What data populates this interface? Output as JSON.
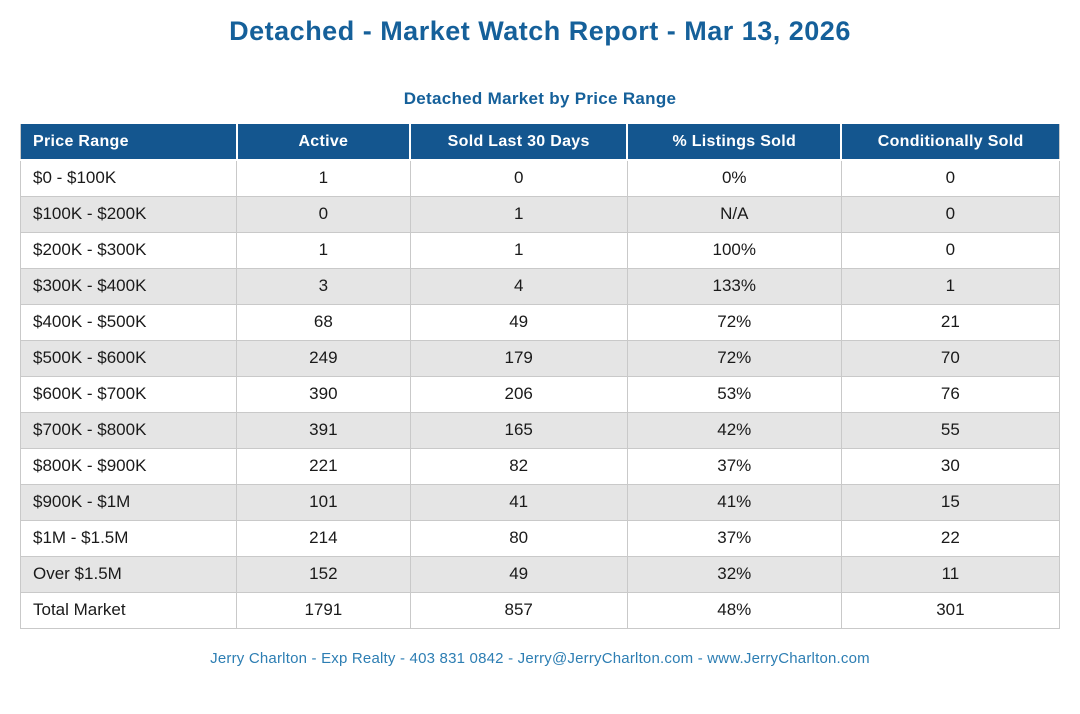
{
  "title": "Detached - Market Watch Report - Mar 13, 2026",
  "table": {
    "title": "Detached Market by Price Range",
    "columns": [
      "Price Range",
      "Active",
      "Sold Last 30 Days",
      "% Listings Sold",
      "Conditionally Sold"
    ],
    "rows": [
      [
        "$0 - $100K",
        "1",
        "0",
        "0%",
        "0"
      ],
      [
        "$100K - $200K",
        "0",
        "1",
        "N/A",
        "0"
      ],
      [
        "$200K - $300K",
        "1",
        "1",
        "100%",
        "0"
      ],
      [
        "$300K - $400K",
        "3",
        "4",
        "133%",
        "1"
      ],
      [
        "$400K - $500K",
        "68",
        "49",
        "72%",
        "21"
      ],
      [
        "$500K - $600K",
        "249",
        "179",
        "72%",
        "70"
      ],
      [
        "$600K - $700K",
        "390",
        "206",
        "53%",
        "76"
      ],
      [
        "$700K - $800K",
        "391",
        "165",
        "42%",
        "55"
      ],
      [
        "$800K - $900K",
        "221",
        "82",
        "37%",
        "30"
      ],
      [
        "$900K - $1M",
        "101",
        "41",
        "41%",
        "15"
      ],
      [
        "$1M - $1.5M",
        "214",
        "80",
        "37%",
        "22"
      ],
      [
        "Over $1.5M",
        "152",
        "49",
        "32%",
        "11"
      ],
      [
        "Total Market",
        "1791",
        "857",
        "48%",
        "301"
      ]
    ]
  },
  "footer": {
    "text": "Jerry Charlton - Exp Realty - 403 831 0842 - Jerry@JerryCharlton.com - www.JerryCharlton.com"
  },
  "colors": {
    "title_text": "#15609A",
    "header_bg": "#14568F",
    "header_text": "#FFFFFF",
    "alt_row_bg": "#E5E5E5",
    "border": "#C9C9C9",
    "body_text": "#1A1A1A",
    "footer_text": "#2D7EB3",
    "page_bg": "#FFFFFF"
  }
}
